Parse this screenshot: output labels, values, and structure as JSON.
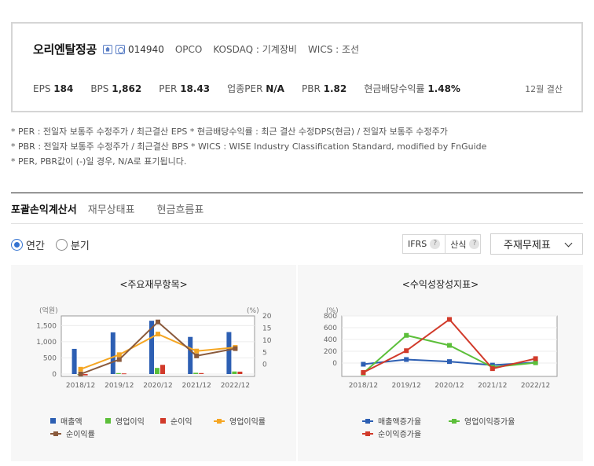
{
  "header": {
    "company": "오리엔탈정공",
    "code": "014940",
    "eng_name": "OPCO",
    "market": "KOSDAQ : 기계장비",
    "wics": "WICS : 조선",
    "stats": [
      {
        "label": "EPS",
        "value": "184"
      },
      {
        "label": "BPS",
        "value": "1,862"
      },
      {
        "label": "PER",
        "value": "18.43"
      },
      {
        "label": "업종PER",
        "value": "N/A"
      },
      {
        "label": "PBR",
        "value": "1.82"
      },
      {
        "label": "현금배당수익률",
        "value": "1.48%"
      }
    ],
    "settlement": "12월 결산"
  },
  "notes": [
    "* PER : 전일자 보통주 수정주가 / 최근결산 EPS * 현금배당수익률 : 최근 결산 수정DPS(현금) / 전일자 보통주 수정주가",
    "* PBR : 전일자 보통주 수정주가 / 최근결산 BPS * WICS : WISE Industry Classification Standard, modified by FnGuide",
    "* PER, PBR값이 (-)일 경우, N/A로 표기됩니다."
  ],
  "tabs": [
    "포괄손익계산서",
    "재무상태표",
    "현금흐름표"
  ],
  "period": {
    "annual": "연간",
    "quarter": "분기",
    "selected": "annual"
  },
  "controls": {
    "ifrs": "IFRS",
    "formula": "산식",
    "help": "?",
    "select_value": "주재무제표"
  },
  "colors": {
    "revenue": "#2d5fb3",
    "op_profit": "#5cbf3a",
    "net_income": "#d13a2a",
    "op_margin": "#f5a623",
    "net_margin": "#8a5a3c",
    "rev_growth": "#2d5fb3",
    "op_growth": "#5cbf3a",
    "net_growth": "#d13a2a"
  },
  "chart_data": [
    {
      "type": "bar",
      "title": "<주요재무항목>",
      "categories": [
        "2018/12",
        "2019/12",
        "2020/12",
        "2021/12",
        "2022/12"
      ],
      "y_unit_left": "(억원)",
      "y_unit_right": "(%)",
      "ylim_left": [
        0,
        1800
      ],
      "yticks_left": [
        "0",
        "500",
        "1,000",
        "1,500"
      ],
      "ylim_right": [
        -4,
        20
      ],
      "yticks_right": [
        "0",
        "5",
        "10",
        "15",
        "20"
      ],
      "series": [
        {
          "name": "매출액",
          "type": "bar",
          "axis": "left",
          "values": [
            780,
            1290,
            1650,
            1150,
            1300
          ]
        },
        {
          "name": "영업이익",
          "type": "bar",
          "axis": "left",
          "values": [
            -15,
            30,
            190,
            40,
            80
          ]
        },
        {
          "name": "순이익",
          "type": "bar",
          "axis": "left",
          "values": [
            -40,
            20,
            285,
            30,
            75
          ]
        },
        {
          "name": "영업이익률",
          "type": "line",
          "axis": "right",
          "values": [
            -2,
            4,
            12.5,
            5.5,
            7
          ]
        },
        {
          "name": "순이익률",
          "type": "line",
          "axis": "right",
          "values": [
            -4,
            2,
            17.5,
            3.5,
            6.5
          ]
        }
      ]
    },
    {
      "type": "line",
      "title": "<수익성장성지표>",
      "categories": [
        "2018/12",
        "2019/12",
        "2020/12",
        "2021/12",
        "2022/12"
      ],
      "y_unit": "(%)",
      "ylim": [
        -200,
        800
      ],
      "yticks": [
        "0",
        "200",
        "400",
        "600",
        "800"
      ],
      "series": [
        {
          "name": "매출액증가율",
          "values": [
            -20,
            60,
            25,
            -35,
            10
          ]
        },
        {
          "name": "영업이익증가율",
          "values": [
            -170,
            470,
            300,
            -70,
            5
          ]
        },
        {
          "name": "순이익증가율",
          "values": [
            -160,
            210,
            740,
            -95,
            75
          ]
        }
      ]
    }
  ]
}
